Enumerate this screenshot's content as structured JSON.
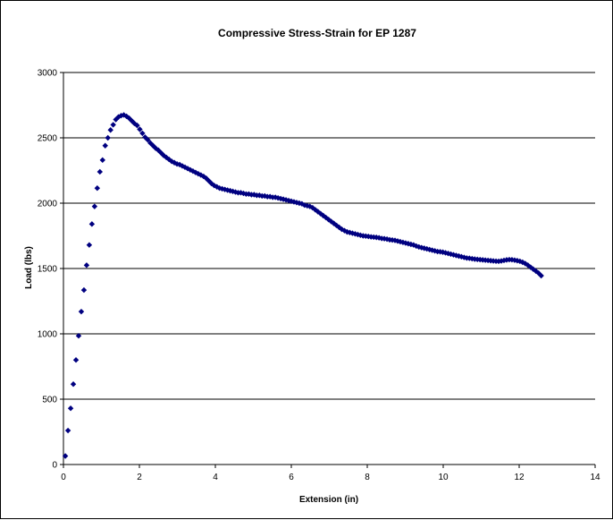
{
  "chart_data": {
    "type": "scatter",
    "title": "Compressive Stress-Strain for EP 1287",
    "xlabel": "Extension (in)",
    "ylabel": "Load (lbs)",
    "xlim": [
      0,
      14
    ],
    "ylim": [
      0,
      3000
    ],
    "x_ticks": [
      0,
      2,
      4,
      6,
      8,
      10,
      12,
      14
    ],
    "y_ticks": [
      0,
      500,
      1000,
      1500,
      2000,
      2500,
      3000
    ],
    "grid": "horizontal major gridlines",
    "legend": "none",
    "marker": "diamond",
    "colors": {
      "marker": "#000080",
      "grid": "#000000",
      "background": "#ffffff"
    },
    "series": [
      {
        "points": [
          [
            0.05,
            65
          ],
          [
            0.12,
            260
          ],
          [
            0.19,
            430
          ],
          [
            0.26,
            615
          ],
          [
            0.33,
            800
          ],
          [
            0.4,
            985
          ],
          [
            0.47,
            1170
          ],
          [
            0.54,
            1335
          ],
          [
            0.61,
            1525
          ],
          [
            0.68,
            1680
          ],
          [
            0.75,
            1840
          ],
          [
            0.82,
            1975
          ],
          [
            0.89,
            2115
          ],
          [
            0.96,
            2240
          ],
          [
            1.03,
            2330
          ],
          [
            1.1,
            2440
          ],
          [
            1.17,
            2500
          ],
          [
            1.24,
            2560
          ],
          [
            1.31,
            2600
          ],
          [
            1.38,
            2640
          ],
          [
            1.45,
            2660
          ],
          [
            1.52,
            2670
          ],
          [
            1.59,
            2675
          ],
          [
            1.66,
            2665
          ],
          [
            1.73,
            2650
          ],
          [
            1.8,
            2630
          ],
          [
            1.87,
            2610
          ],
          [
            1.94,
            2595
          ],
          [
            2.01,
            2565
          ],
          [
            2.08,
            2535
          ],
          [
            2.15,
            2505
          ],
          [
            2.22,
            2485
          ],
          [
            2.29,
            2460
          ],
          [
            2.36,
            2440
          ],
          [
            2.43,
            2420
          ],
          [
            2.5,
            2405
          ],
          [
            2.57,
            2385
          ],
          [
            2.64,
            2365
          ],
          [
            2.71,
            2350
          ],
          [
            2.78,
            2335
          ],
          [
            2.85,
            2320
          ],
          [
            2.92,
            2310
          ],
          [
            2.99,
            2300
          ],
          [
            3.06,
            2295
          ],
          [
            3.13,
            2285
          ],
          [
            3.2,
            2275
          ],
          [
            3.27,
            2265
          ],
          [
            3.34,
            2255
          ],
          [
            3.41,
            2245
          ],
          [
            3.48,
            2235
          ],
          [
            3.55,
            2225
          ],
          [
            3.62,
            2215
          ],
          [
            3.69,
            2205
          ],
          [
            3.76,
            2190
          ],
          [
            3.83,
            2170
          ],
          [
            3.9,
            2150
          ],
          [
            3.97,
            2135
          ],
          [
            4.04,
            2125
          ],
          [
            4.11,
            2115
          ],
          [
            4.18,
            2110
          ],
          [
            4.25,
            2105
          ],
          [
            4.32,
            2100
          ],
          [
            4.39,
            2095
          ],
          [
            4.46,
            2090
          ],
          [
            4.53,
            2085
          ],
          [
            4.6,
            2080
          ],
          [
            4.67,
            2080
          ],
          [
            4.74,
            2075
          ],
          [
            4.81,
            2070
          ],
          [
            4.88,
            2070
          ],
          [
            4.95,
            2065
          ],
          [
            5.02,
            2065
          ],
          [
            5.09,
            2060
          ],
          [
            5.16,
            2060
          ],
          [
            5.23,
            2055
          ],
          [
            5.3,
            2055
          ],
          [
            5.37,
            2050
          ],
          [
            5.44,
            2050
          ],
          [
            5.51,
            2045
          ],
          [
            5.58,
            2045
          ],
          [
            5.65,
            2040
          ],
          [
            5.72,
            2035
          ],
          [
            5.79,
            2030
          ],
          [
            5.86,
            2025
          ],
          [
            5.93,
            2020
          ],
          [
            6.0,
            2015
          ],
          [
            6.07,
            2010
          ],
          [
            6.14,
            2005
          ],
          [
            6.21,
            2000
          ],
          [
            6.28,
            1995
          ],
          [
            6.35,
            1985
          ],
          [
            6.42,
            1980
          ],
          [
            6.49,
            1975
          ],
          [
            6.56,
            1965
          ],
          [
            6.63,
            1950
          ],
          [
            6.7,
            1935
          ],
          [
            6.77,
            1920
          ],
          [
            6.84,
            1905
          ],
          [
            6.91,
            1890
          ],
          [
            6.98,
            1875
          ],
          [
            7.05,
            1860
          ],
          [
            7.12,
            1845
          ],
          [
            7.19,
            1830
          ],
          [
            7.26,
            1815
          ],
          [
            7.33,
            1800
          ],
          [
            7.4,
            1790
          ],
          [
            7.47,
            1780
          ],
          [
            7.54,
            1775
          ],
          [
            7.61,
            1770
          ],
          [
            7.68,
            1765
          ],
          [
            7.75,
            1760
          ],
          [
            7.82,
            1755
          ],
          [
            7.89,
            1750
          ],
          [
            7.96,
            1748
          ],
          [
            8.03,
            1745
          ],
          [
            8.1,
            1742
          ],
          [
            8.17,
            1740
          ],
          [
            8.24,
            1738
          ],
          [
            8.31,
            1735
          ],
          [
            8.38,
            1730
          ],
          [
            8.45,
            1728
          ],
          [
            8.52,
            1725
          ],
          [
            8.59,
            1720
          ],
          [
            8.66,
            1718
          ],
          [
            8.73,
            1715
          ],
          [
            8.8,
            1710
          ],
          [
            8.87,
            1705
          ],
          [
            8.94,
            1700
          ],
          [
            9.01,
            1695
          ],
          [
            9.08,
            1690
          ],
          [
            9.15,
            1685
          ],
          [
            9.22,
            1680
          ],
          [
            9.29,
            1672
          ],
          [
            9.36,
            1665
          ],
          [
            9.43,
            1660
          ],
          [
            9.5,
            1655
          ],
          [
            9.57,
            1650
          ],
          [
            9.64,
            1645
          ],
          [
            9.71,
            1640
          ],
          [
            9.78,
            1635
          ],
          [
            9.85,
            1630
          ],
          [
            9.92,
            1628
          ],
          [
            9.99,
            1625
          ],
          [
            10.06,
            1620
          ],
          [
            10.13,
            1615
          ],
          [
            10.2,
            1610
          ],
          [
            10.27,
            1605
          ],
          [
            10.34,
            1600
          ],
          [
            10.41,
            1595
          ],
          [
            10.48,
            1590
          ],
          [
            10.55,
            1585
          ],
          [
            10.62,
            1580
          ],
          [
            10.69,
            1578
          ],
          [
            10.76,
            1575
          ],
          [
            10.83,
            1572
          ],
          [
            10.9,
            1570
          ],
          [
            10.97,
            1568
          ],
          [
            11.04,
            1566
          ],
          [
            11.11,
            1564
          ],
          [
            11.18,
            1562
          ],
          [
            11.25,
            1560
          ],
          [
            11.32,
            1558
          ],
          [
            11.39,
            1556
          ],
          [
            11.46,
            1555
          ],
          [
            11.53,
            1558
          ],
          [
            11.6,
            1562
          ],
          [
            11.67,
            1566
          ],
          [
            11.74,
            1568
          ],
          [
            11.81,
            1567
          ],
          [
            11.88,
            1564
          ],
          [
            11.95,
            1560
          ],
          [
            12.02,
            1555
          ],
          [
            12.09,
            1548
          ],
          [
            12.16,
            1538
          ],
          [
            12.23,
            1525
          ],
          [
            12.3,
            1510
          ],
          [
            12.37,
            1495
          ],
          [
            12.44,
            1480
          ],
          [
            12.51,
            1465
          ],
          [
            12.58,
            1445
          ]
        ]
      }
    ]
  }
}
